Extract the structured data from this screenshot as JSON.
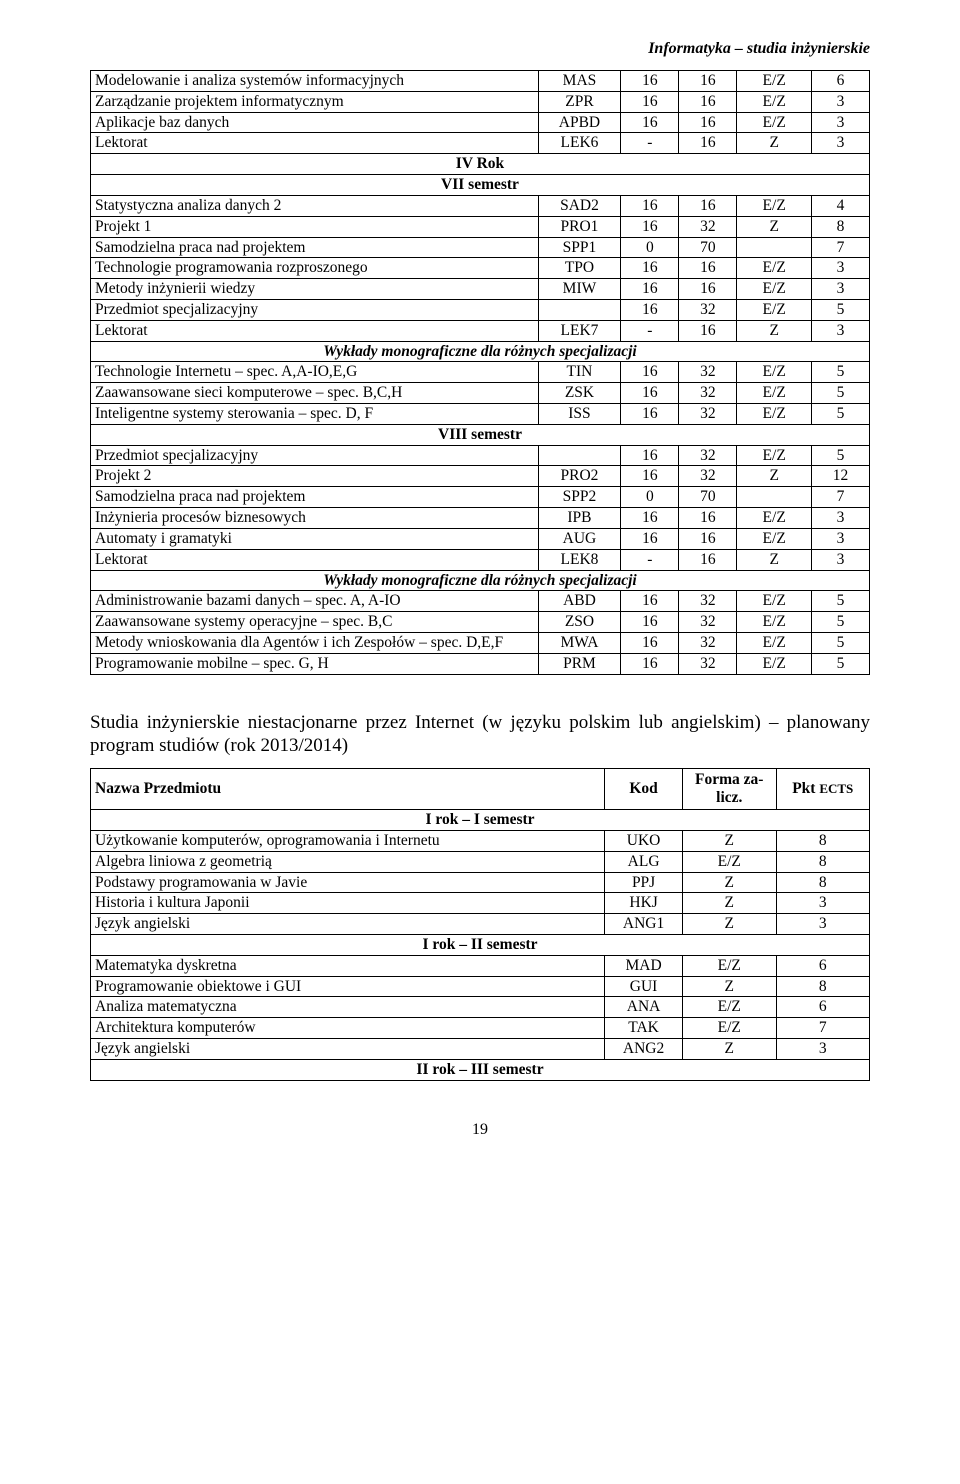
{
  "header": {
    "title": "Informatyka – studia inżynierskie"
  },
  "table1": {
    "rows": [
      {
        "type": "data",
        "name": "Modelowanie i analiza systemów informacyjnych",
        "code": "MAS",
        "v1": "16",
        "v2": "16",
        "fz": "E/Z",
        "ects": "6"
      },
      {
        "type": "data",
        "name": "Zarządzanie projektem informatycznym",
        "code": "ZPR",
        "v1": "16",
        "v2": "16",
        "fz": "E/Z",
        "ects": "3"
      },
      {
        "type": "data",
        "name": "Aplikacje baz danych",
        "code": "APBD",
        "v1": "16",
        "v2": "16",
        "fz": "E/Z",
        "ects": "3"
      },
      {
        "type": "data",
        "name": "Lektorat",
        "code": "LEK6",
        "v1": "-",
        "v2": "16",
        "fz": "Z",
        "ects": "3"
      },
      {
        "type": "section",
        "label": "IV Rok"
      },
      {
        "type": "section",
        "label": "VII semestr"
      },
      {
        "type": "data",
        "name": "Statystyczna analiza danych 2",
        "code": "SAD2",
        "v1": "16",
        "v2": "16",
        "fz": "E/Z",
        "ects": "4"
      },
      {
        "type": "data",
        "name": "Projekt 1",
        "code": "PRO1",
        "v1": "16",
        "v2": "32",
        "fz": "Z",
        "ects": "8"
      },
      {
        "type": "data",
        "name": "Samodzielna praca nad projektem",
        "code": "SPP1",
        "v1": "0",
        "v2": "70",
        "fz": "",
        "ects": "7"
      },
      {
        "type": "data",
        "name": "Technologie programowania rozproszonego",
        "code": "TPO",
        "v1": "16",
        "v2": "16",
        "fz": "E/Z",
        "ects": "3"
      },
      {
        "type": "data",
        "name": "Metody inżynierii wiedzy",
        "code": "MIW",
        "v1": "16",
        "v2": "16",
        "fz": "E/Z",
        "ects": "3"
      },
      {
        "type": "data",
        "name": "Przedmiot specjalizacyjny",
        "code": "",
        "v1": "16",
        "v2": "32",
        "fz": "E/Z",
        "ects": "5"
      },
      {
        "type": "data",
        "name": "Lektorat",
        "code": "LEK7",
        "v1": "-",
        "v2": "16",
        "fz": "Z",
        "ects": "3"
      },
      {
        "type": "section-italic",
        "label": "Wykłady monograficzne dla różnych specjalizacji"
      },
      {
        "type": "data",
        "name": "Technologie Internetu – spec. A,A-IO,E,G",
        "code": "TIN",
        "v1": "16",
        "v2": "32",
        "fz": "E/Z",
        "ects": "5"
      },
      {
        "type": "data",
        "name": "Zaawansowane sieci komputerowe – spec. B,C,H",
        "code": "ZSK",
        "v1": "16",
        "v2": "32",
        "fz": "E/Z",
        "ects": "5"
      },
      {
        "type": "data",
        "name": "Inteligentne systemy sterowania – spec. D, F",
        "code": "ISS",
        "v1": "16",
        "v2": "32",
        "fz": "E/Z",
        "ects": "5"
      },
      {
        "type": "section",
        "label": "VIII semestr"
      },
      {
        "type": "data",
        "name": "Przedmiot specjalizacyjny",
        "code": "",
        "v1": "16",
        "v2": "32",
        "fz": "E/Z",
        "ects": "5"
      },
      {
        "type": "data",
        "name": "Projekt 2",
        "code": "PRO2",
        "v1": "16",
        "v2": "32",
        "fz": "Z",
        "ects": "12"
      },
      {
        "type": "data",
        "name": "Samodzielna praca nad projektem",
        "code": "SPP2",
        "v1": "0",
        "v2": "70",
        "fz": "",
        "ects": "7"
      },
      {
        "type": "data",
        "name": "Inżynieria procesów biznesowych",
        "code": "IPB",
        "v1": "16",
        "v2": "16",
        "fz": "E/Z",
        "ects": "3"
      },
      {
        "type": "data",
        "name": "Automaty i gramatyki",
        "code": "AUG",
        "v1": "16",
        "v2": "16",
        "fz": "E/Z",
        "ects": "3"
      },
      {
        "type": "data",
        "name": "Lektorat",
        "code": "LEK8",
        "v1": "-",
        "v2": "16",
        "fz": "Z",
        "ects": "3"
      },
      {
        "type": "section-italic",
        "label": "Wykłady monograficzne dla różnych specjalizacji"
      },
      {
        "type": "data",
        "name": "Administrowanie bazami danych – spec. A, A-IO",
        "code": "ABD",
        "v1": "16",
        "v2": "32",
        "fz": "E/Z",
        "ects": "5"
      },
      {
        "type": "data",
        "name": "Zaawansowane systemy operacyjne – spec. B,C",
        "code": "ZSO",
        "v1": "16",
        "v2": "32",
        "fz": "E/Z",
        "ects": "5"
      },
      {
        "type": "data",
        "name": "Metody wnioskowania dla Agentów i ich Zespołów – spec. D,E,F",
        "code": "MWA",
        "v1": "16",
        "v2": "32",
        "fz": "E/Z",
        "ects": "5"
      },
      {
        "type": "data",
        "name": "Programowanie mobilne – spec. G, H",
        "code": "PRM",
        "v1": "16",
        "v2": "32",
        "fz": "E/Z",
        "ects": "5"
      }
    ]
  },
  "heading2": "Studia inżynierskie niestacjonarne przez Internet (w języku polskim lub angielskim) – planowany program studiów (rok 2013/2014)",
  "table2": {
    "headers": {
      "name": "Nazwa Przedmiotu",
      "code": "Kod",
      "fz_line1": "Forma za-",
      "fz_line2": "licz.",
      "ects": "Pkt ECTS"
    },
    "rows": [
      {
        "type": "section",
        "label": "I rok – I semestr"
      },
      {
        "type": "data",
        "name": "Użytkowanie komputerów, oprogramowania i Internetu",
        "code": "UKO",
        "fz": "Z",
        "ects": "8"
      },
      {
        "type": "data",
        "name": "Algebra liniowa z geometrią",
        "code": "ALG",
        "fz": "E/Z",
        "ects": "8"
      },
      {
        "type": "data",
        "name": "Podstawy programowania w Javie",
        "code": "PPJ",
        "fz": "Z",
        "ects": "8"
      },
      {
        "type": "data",
        "name": "Historia i kultura Japonii",
        "code": "HKJ",
        "fz": "Z",
        "ects": "3"
      },
      {
        "type": "data",
        "name": "Język angielski",
        "code": "ANG1",
        "fz": "Z",
        "ects": "3"
      },
      {
        "type": "section",
        "label": "I rok – II semestr"
      },
      {
        "type": "data",
        "name": "Matematyka dyskretna",
        "code": "MAD",
        "fz": "E/Z",
        "ects": "6"
      },
      {
        "type": "data",
        "name": "Programowanie obiektowe i GUI",
        "code": "GUI",
        "fz": "Z",
        "ects": "8"
      },
      {
        "type": "data",
        "name": "Analiza matematyczna",
        "code": "ANA",
        "fz": "E/Z",
        "ects": "6"
      },
      {
        "type": "data",
        "name": "Architektura komputerów",
        "code": "TAK",
        "fz": "E/Z",
        "ects": "7"
      },
      {
        "type": "data",
        "name": "Język angielski",
        "code": "ANG2",
        "fz": "Z",
        "ects": "3"
      },
      {
        "type": "section",
        "label": "II rok – III semestr"
      }
    ]
  },
  "page_number": "19"
}
